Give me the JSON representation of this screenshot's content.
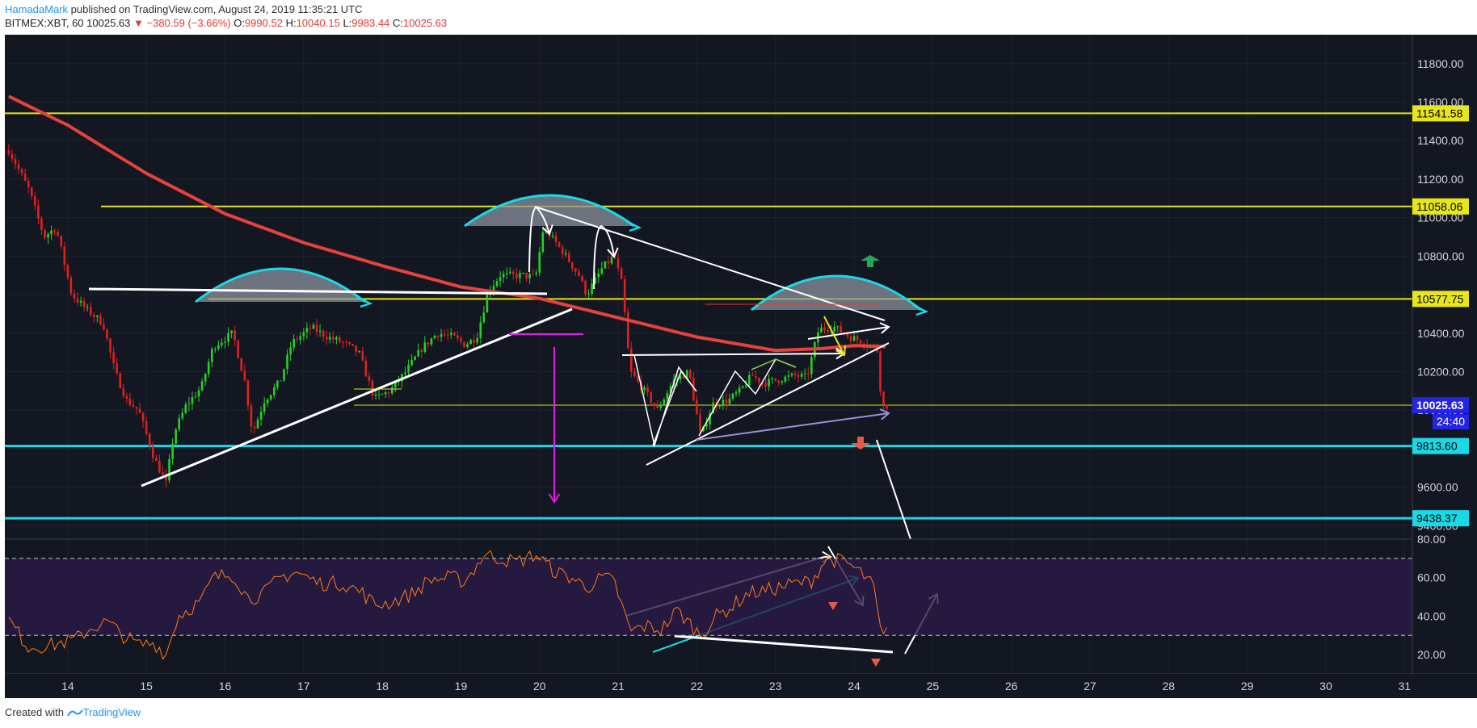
{
  "header": {
    "author": "HamadaMark",
    "published": " published on TradingView.com, August 24, 2019 11:35:21 UTC",
    "symbol": "BITMEX:XBT, 60",
    "last": "10025.63",
    "change": "▼ −380.59 (−3.66%)",
    "o_label": "O:",
    "o_value": "9990.52",
    "h_label": "H:",
    "h_value": "10040.15",
    "l_label": "L:",
    "l_value": "9983.44",
    "c_label": "C:",
    "c_value": "10025.63"
  },
  "footer": {
    "created_with": "Created with",
    "brand": "TradingView"
  },
  "colors": {
    "background": "#131722",
    "grid": "#1e2230",
    "up": "#26d126",
    "down": "#e02020",
    "ma": "#e5423e",
    "yellow": "#e6e619",
    "cyan": "#19d9e6",
    "white": "#ffffff",
    "magenta": "#e619e6",
    "rsi": "#ff7a1a",
    "rsi_band": "#2a1a48"
  },
  "chart_data": {
    "type": "candlestick",
    "symbol": "BITMEX:XBT",
    "interval": "60",
    "ylim": [
      9330,
      11950
    ],
    "y_ticks": [
      9400,
      9600,
      9800,
      10000,
      10200,
      10400,
      10600,
      10800,
      11000,
      11200,
      11400,
      11600,
      11800
    ],
    "x_ticks": [
      "14",
      "15",
      "16",
      "17",
      "18",
      "19",
      "20",
      "21",
      "22",
      "23",
      "24",
      "25",
      "26",
      "27",
      "28",
      "29",
      "30",
      "31"
    ],
    "x_range_days": [
      13.2,
      31.1
    ],
    "price_anchors": [
      [
        13.25,
        11350
      ],
      [
        13.5,
        11150
      ],
      [
        13.7,
        10900
      ],
      [
        13.85,
        10950
      ],
      [
        14.05,
        10600
      ],
      [
        14.25,
        10520
      ],
      [
        14.45,
        10450
      ],
      [
        14.6,
        10200
      ],
      [
        14.75,
        10050
      ],
      [
        14.9,
        10000
      ],
      [
        15.1,
        9750
      ],
      [
        15.25,
        9620
      ],
      [
        15.35,
        9880
      ],
      [
        15.5,
        10020
      ],
      [
        15.7,
        10120
      ],
      [
        15.85,
        10330
      ],
      [
        16.1,
        10400
      ],
      [
        16.25,
        10150
      ],
      [
        16.35,
        9880
      ],
      [
        16.5,
        10050
      ],
      [
        16.7,
        10150
      ],
      [
        16.85,
        10350
      ],
      [
        17.1,
        10430
      ],
      [
        17.3,
        10380
      ],
      [
        17.5,
        10350
      ],
      [
        17.7,
        10300
      ],
      [
        17.9,
        10060
      ],
      [
        18.1,
        10100
      ],
      [
        18.3,
        10200
      ],
      [
        18.5,
        10320
      ],
      [
        18.7,
        10400
      ],
      [
        18.9,
        10380
      ],
      [
        19.05,
        10340
      ],
      [
        19.2,
        10380
      ],
      [
        19.35,
        10620
      ],
      [
        19.5,
        10700
      ],
      [
        19.8,
        10700
      ],
      [
        19.95,
        10690
      ],
      [
        20.05,
        10950
      ],
      [
        20.3,
        10820
      ],
      [
        20.5,
        10700
      ],
      [
        20.6,
        10600
      ],
      [
        20.8,
        10740
      ],
      [
        20.95,
        10800
      ],
      [
        21.05,
        10650
      ],
      [
        21.15,
        10200
      ],
      [
        21.3,
        10120
      ],
      [
        21.5,
        10000
      ],
      [
        21.7,
        10150
      ],
      [
        21.9,
        10200
      ],
      [
        22.05,
        9860
      ],
      [
        22.2,
        10030
      ],
      [
        22.4,
        10050
      ],
      [
        22.55,
        10100
      ],
      [
        22.7,
        10180
      ],
      [
        22.85,
        10140
      ],
      [
        23.05,
        10160
      ],
      [
        23.25,
        10180
      ],
      [
        23.4,
        10170
      ],
      [
        23.55,
        10420
      ],
      [
        23.75,
        10430
      ],
      [
        23.95,
        10380
      ],
      [
        24.15,
        10350
      ],
      [
        24.3,
        10310
      ],
      [
        24.35,
        10020
      ],
      [
        24.43,
        10025
      ]
    ],
    "moving_average": [
      [
        13.25,
        11630
      ],
      [
        14,
        11480
      ],
      [
        15,
        11230
      ],
      [
        16,
        11020
      ],
      [
        17,
        10870
      ],
      [
        18,
        10750
      ],
      [
        19,
        10640
      ],
      [
        20,
        10580
      ],
      [
        21,
        10480
      ],
      [
        22,
        10380
      ],
      [
        23,
        10310
      ],
      [
        23.6,
        10320
      ],
      [
        24,
        10335
      ],
      [
        24.43,
        10330
      ]
    ],
    "horizontal_levels": [
      {
        "price": 11541.58,
        "label": "11541.58",
        "kind": "resistance",
        "color": "#e6e619"
      },
      {
        "price": 11058.06,
        "label": "11058.06",
        "kind": "resistance",
        "color": "#e6e619"
      },
      {
        "price": 10577.75,
        "label": "10577.75",
        "kind": "resistance",
        "color": "#e6e619"
      },
      {
        "price": 9813.6,
        "label": "9813.60",
        "kind": "support",
        "color": "#19d9e6"
      },
      {
        "price": 9438.37,
        "label": "9438.37",
        "kind": "support",
        "color": "#19d9e6"
      }
    ],
    "last_price": {
      "value": 10025.63,
      "label": "10025.63",
      "countdown": "24:40"
    },
    "rsi": {
      "ylim": [
        10,
        80
      ],
      "y_ticks": [
        20,
        40,
        60,
        80
      ],
      "bands": [
        30,
        70
      ],
      "anchors": [
        [
          13.25,
          38
        ],
        [
          13.5,
          24
        ],
        [
          13.8,
          25
        ],
        [
          14.1,
          28
        ],
        [
          14.3,
          34
        ],
        [
          14.5,
          37
        ],
        [
          14.7,
          30
        ],
        [
          14.9,
          25
        ],
        [
          15.1,
          26
        ],
        [
          15.25,
          20
        ],
        [
          15.4,
          40
        ],
        [
          15.7,
          48
        ],
        [
          15.85,
          60
        ],
        [
          16.1,
          62
        ],
        [
          16.3,
          49
        ],
        [
          16.5,
          52
        ],
        [
          16.7,
          60
        ],
        [
          16.9,
          63
        ],
        [
          17.2,
          57
        ],
        [
          17.5,
          57
        ],
        [
          17.75,
          52
        ],
        [
          17.9,
          46
        ],
        [
          18.1,
          47
        ],
        [
          18.4,
          52
        ],
        [
          18.6,
          59
        ],
        [
          18.9,
          60
        ],
        [
          19.05,
          58
        ],
        [
          19.3,
          72
        ],
        [
          19.5,
          70
        ],
        [
          19.7,
          68
        ],
        [
          19.95,
          72
        ],
        [
          20.2,
          63
        ],
        [
          20.4,
          60
        ],
        [
          20.6,
          55
        ],
        [
          20.8,
          60
        ],
        [
          20.95,
          58
        ],
        [
          21.15,
          32
        ],
        [
          21.35,
          35
        ],
        [
          21.55,
          33
        ],
        [
          21.75,
          43
        ],
        [
          22.05,
          30
        ],
        [
          22.25,
          40
        ],
        [
          22.45,
          45
        ],
        [
          22.65,
          52
        ],
        [
          22.85,
          53
        ],
        [
          23.05,
          55
        ],
        [
          23.25,
          57
        ],
        [
          23.45,
          58
        ],
        [
          23.65,
          70
        ],
        [
          23.9,
          68
        ],
        [
          24.1,
          62
        ],
        [
          24.25,
          55
        ],
        [
          24.35,
          28
        ],
        [
          24.43,
          32
        ]
      ]
    },
    "annotations": [
      {
        "type": "trendline",
        "from": [
          15.0,
          9660
        ],
        "to": [
          16.7,
          10380
        ],
        "color": "#ffffff"
      },
      {
        "type": "arrow",
        "label": "down",
        "color": "#e53935"
      },
      {
        "type": "arrow",
        "label": "up",
        "color": "#26a65b"
      }
    ]
  }
}
